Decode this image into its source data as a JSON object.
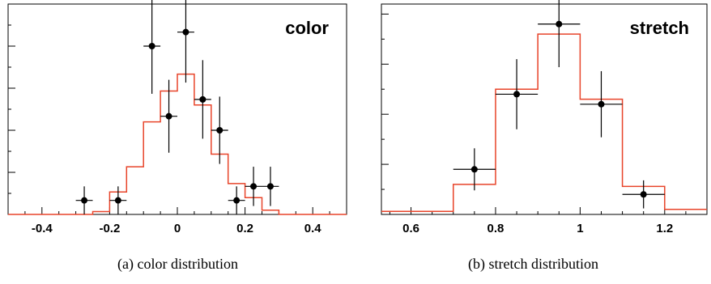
{
  "chart_data": [
    {
      "type": "histogram",
      "title": "color",
      "caption": "(a)  color distribution",
      "xlim": [
        -0.5,
        0.5
      ],
      "ylim": [
        0,
        15
      ],
      "xticks": [
        -0.4,
        -0.2,
        0,
        0.2,
        0.4
      ],
      "xtick_labels": [
        "-0.4",
        "-0.2",
        "0",
        "0.2",
        "0.4"
      ],
      "histogram": {
        "edges": [
          -0.5,
          -0.25,
          -0.2,
          -0.15,
          -0.1,
          -0.05,
          0,
          0.05,
          0.1,
          0.15,
          0.2,
          0.25,
          0.3,
          0.5
        ],
        "values": [
          0,
          0.2,
          1.6,
          3.4,
          6.6,
          8.8,
          10.0,
          7.8,
          4.3,
          2.2,
          1.2,
          0.3,
          0
        ],
        "color": "#e8442a"
      },
      "points": [
        {
          "x": -0.275,
          "y": 1.0,
          "xerr": 0.025,
          "yerr": 1.0
        },
        {
          "x": -0.175,
          "y": 1.0,
          "xerr": 0.025,
          "yerr": 1.0
        },
        {
          "x": -0.075,
          "y": 12.0,
          "xerr": 0.025,
          "yerr": 3.4
        },
        {
          "x": -0.025,
          "y": 7.0,
          "xerr": 0.025,
          "yerr": 2.6
        },
        {
          "x": 0.025,
          "y": 13.0,
          "xerr": 0.025,
          "yerr": 3.6
        },
        {
          "x": 0.075,
          "y": 8.2,
          "xerr": 0.025,
          "yerr": 2.8
        },
        {
          "x": 0.125,
          "y": 6.0,
          "xerr": 0.025,
          "yerr": 2.4
        },
        {
          "x": 0.175,
          "y": 1.0,
          "xerr": 0.025,
          "yerr": 1.0
        },
        {
          "x": 0.225,
          "y": 2.0,
          "xerr": 0.025,
          "yerr": 1.4
        },
        {
          "x": 0.275,
          "y": 2.0,
          "xerr": 0.025,
          "yerr": 1.4
        }
      ]
    },
    {
      "type": "histogram",
      "title": "stretch",
      "caption": "(b)  stretch distribution",
      "xlim": [
        0.53,
        1.3
      ],
      "ylim": [
        0,
        21
      ],
      "xticks": [
        0.6,
        0.8,
        1,
        1.2
      ],
      "xtick_labels": [
        "0.6",
        "0.8",
        "1",
        "1.2"
      ],
      "histogram": {
        "edges": [
          0.53,
          0.7,
          0.8,
          0.9,
          1.0,
          1.1,
          1.2,
          1.3
        ],
        "values": [
          0.3,
          3.0,
          12.5,
          18.0,
          11.5,
          2.8,
          0.5
        ],
        "color": "#e8442a"
      },
      "points": [
        {
          "x": 0.75,
          "y": 4.5,
          "xerr": 0.05,
          "yerr": 2.1
        },
        {
          "x": 0.85,
          "y": 12.0,
          "xerr": 0.05,
          "yerr": 3.5
        },
        {
          "x": 0.95,
          "y": 19.0,
          "xerr": 0.05,
          "yerr": 4.3
        },
        {
          "x": 1.05,
          "y": 11.0,
          "xerr": 0.05,
          "yerr": 3.3
        },
        {
          "x": 1.15,
          "y": 2.0,
          "xerr": 0.05,
          "yerr": 1.4
        }
      ]
    }
  ]
}
